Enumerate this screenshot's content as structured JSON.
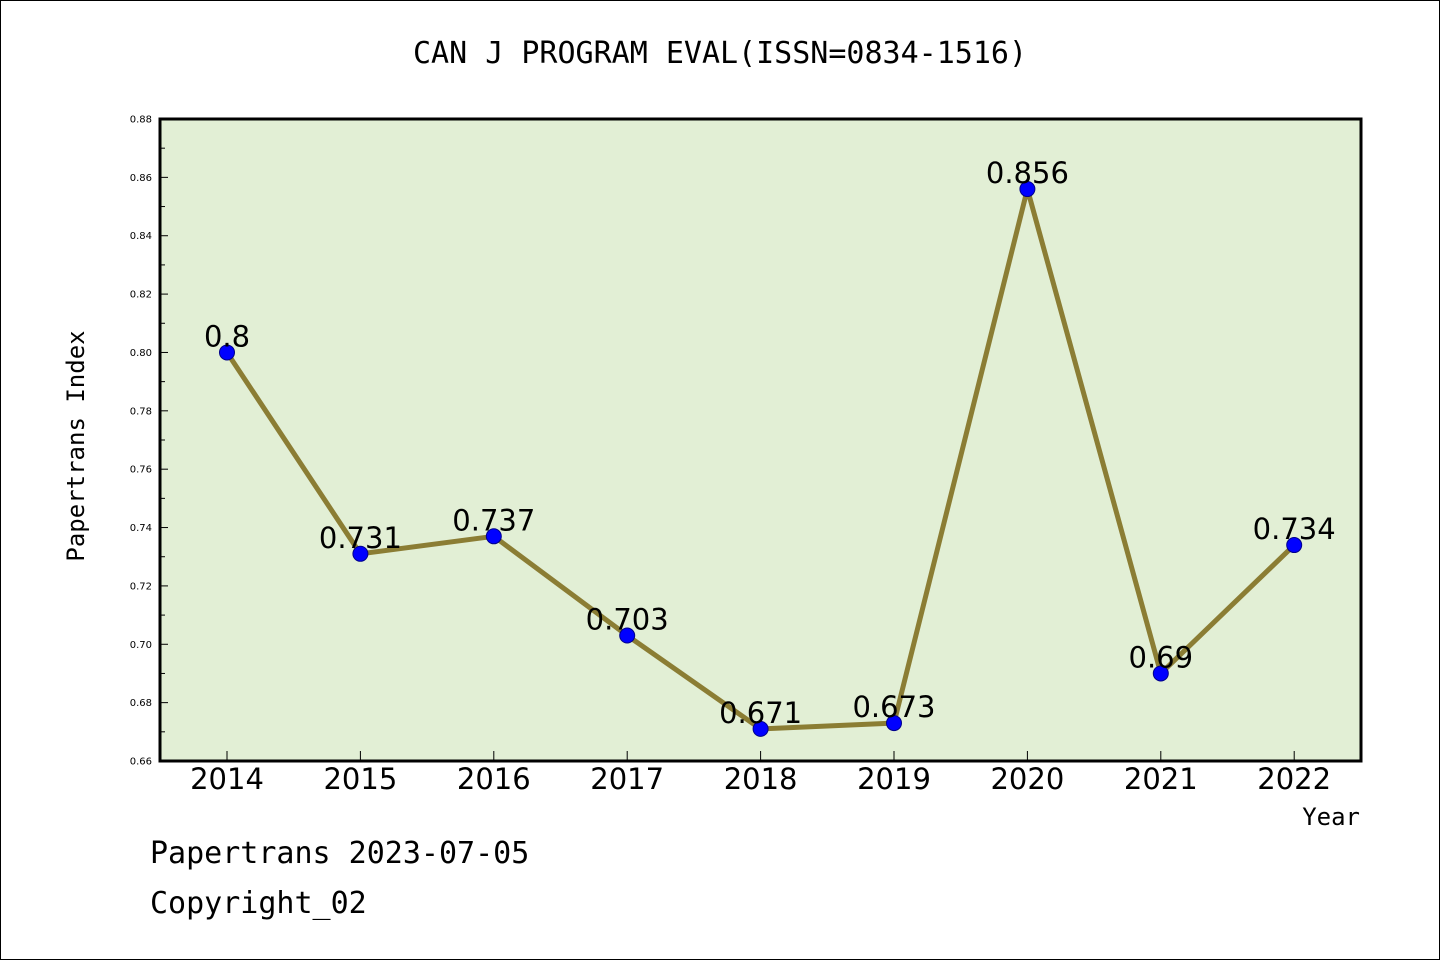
{
  "title": "CAN J PROGRAM EVAL(ISSN=0834-1516)",
  "footer": {
    "date_line": "Papertrans 2023-07-05",
    "copyright": "Copyright_02"
  },
  "colors": {
    "plot_background": "#e2efd5",
    "line": "#8b7d34",
    "marker": "#0000ff",
    "marker_edge": "#00008b"
  },
  "chart_data": {
    "type": "line",
    "xlabel": "Year",
    "ylabel": "Papertrans Index",
    "ylim": [
      0.66,
      0.88
    ],
    "yticks": [
      "0.66",
      "0.68",
      "0.70",
      "0.72",
      "0.74",
      "0.76",
      "0.78",
      "0.80",
      "0.82",
      "0.84",
      "0.86",
      "0.88"
    ],
    "grid": false,
    "categories": [
      "2014",
      "2015",
      "2016",
      "2017",
      "2018",
      "2019",
      "2020",
      "2021",
      "2022"
    ],
    "values": [
      0.8,
      0.731,
      0.737,
      0.703,
      0.671,
      0.673,
      0.856,
      0.69,
      0.734
    ],
    "data_labels": [
      "0.8",
      "0.731",
      "0.737",
      "0.703",
      "0.671",
      "0.673",
      "0.856",
      "0.69",
      "0.734"
    ]
  }
}
